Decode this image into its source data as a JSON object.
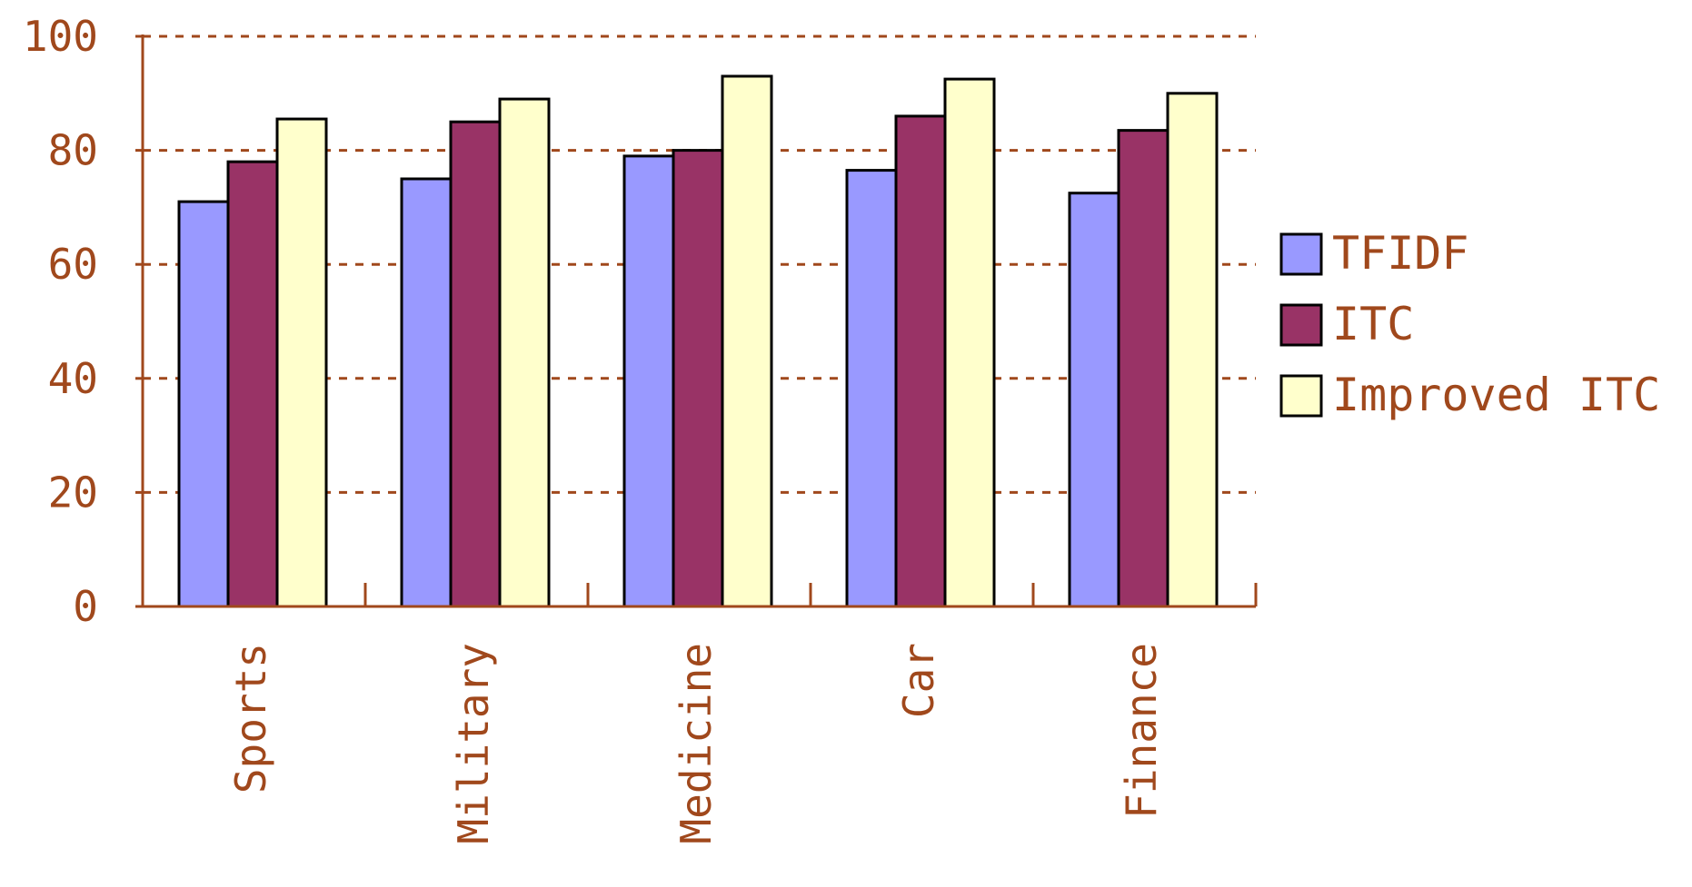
{
  "chart_data": {
    "type": "bar",
    "categories": [
      "Sports",
      "Military",
      "Medicine",
      "Car",
      "Finance"
    ],
    "series": [
      {
        "name": "TFIDF",
        "values": [
          71,
          75,
          79,
          76.5,
          72.5
        ],
        "color": "#9999ff"
      },
      {
        "name": "ITC",
        "values": [
          78,
          85,
          80,
          86,
          83.5
        ],
        "color": "#993366"
      },
      {
        "name": "Improved ITC",
        "values": [
          85.5,
          89,
          93,
          92.5,
          90
        ],
        "color": "#ffffcc"
      }
    ],
    "yticks": [
      0,
      20,
      40,
      60,
      80,
      100
    ],
    "ylim": [
      0,
      100
    ],
    "grid": true,
    "legend_position": "right",
    "axis_color": "#a0481c",
    "grid_color": "#a0481c"
  }
}
